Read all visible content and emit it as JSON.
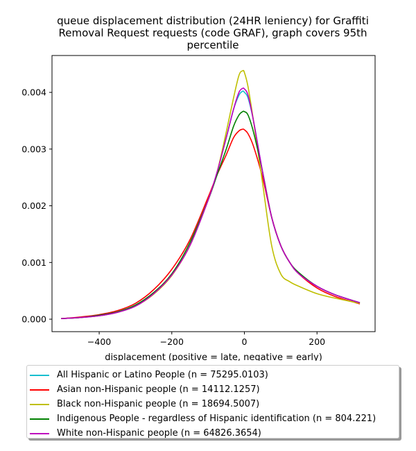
{
  "chart_data": {
    "type": "line",
    "title": "queue displacement distribution (24HR leniency) for Graffiti\nRemoval Request  requests (code GRAF), graph covers 95th\npercentile",
    "xlabel": "displacement (positive = late, negative = early)",
    "ylabel": "",
    "xlim": [
      -530,
      360
    ],
    "ylim": [
      -0.00022,
      0.00465
    ],
    "x_ticks": [
      -400,
      -200,
      0,
      200
    ],
    "x_tick_labels": [
      "−400",
      "−200",
      "0",
      "200"
    ],
    "y_ticks": [
      0.0,
      0.001,
      0.002,
      0.003,
      0.004
    ],
    "y_tick_labels": [
      "0.000",
      "0.001",
      "0.002",
      "0.003",
      "0.004"
    ],
    "grid": false,
    "legend_position": "bottom, below axes",
    "x": [
      -505,
      -450,
      -400,
      -350,
      -300,
      -250,
      -200,
      -150,
      -100,
      -75,
      -50,
      -30,
      -15,
      -5,
      0,
      10,
      25,
      50,
      75,
      100,
      125,
      150,
      200,
      250,
      318
    ],
    "series": [
      {
        "name": "All Hispanic or Latino People (n = 75295.0103)",
        "color": "#17becf",
        "values": [
          1e-05,
          3e-05,
          6e-05,
          0.00012,
          0.00023,
          0.00045,
          0.00078,
          0.0013,
          0.0021,
          0.0026,
          0.0032,
          0.0037,
          0.00395,
          0.00402,
          0.004,
          0.0039,
          0.0035,
          0.0026,
          0.0018,
          0.0013,
          0.001,
          0.0008,
          0.00058,
          0.00043,
          0.00029
        ]
      },
      {
        "name": "Asian non-Hispanic people (n = 14112.1257)",
        "color": "#ff0000",
        "values": [
          1e-05,
          4e-05,
          8e-05,
          0.00015,
          0.00028,
          0.00052,
          0.00088,
          0.0014,
          0.00215,
          0.00255,
          0.0029,
          0.0032,
          0.00332,
          0.00335,
          0.00334,
          0.00327,
          0.00305,
          0.0025,
          0.0018,
          0.0013,
          0.001,
          0.0008,
          0.00055,
          0.0004,
          0.00027
        ]
      },
      {
        "name": "Black non-Hispanic people (n = 18694.5007)",
        "color": "#bfbf00",
        "values": [
          1e-05,
          3e-05,
          6e-05,
          0.00012,
          0.00023,
          0.00044,
          0.00077,
          0.0013,
          0.0021,
          0.0026,
          0.0033,
          0.0039,
          0.0043,
          0.00438,
          0.00435,
          0.0041,
          0.0035,
          0.0024,
          0.0013,
          0.0008,
          0.00066,
          0.00058,
          0.00045,
          0.00037,
          0.00028
        ]
      },
      {
        "name": "Indigenous People - regardless of Hispanic identification (n = 804.221)",
        "color": "#008000",
        "values": [
          1e-05,
          3e-05,
          7e-05,
          0.00013,
          0.00025,
          0.00047,
          0.0008,
          0.00135,
          0.0021,
          0.00255,
          0.003,
          0.0034,
          0.0036,
          0.00366,
          0.00366,
          0.0036,
          0.0033,
          0.0026,
          0.0018,
          0.0013,
          0.001,
          0.00082,
          0.00058,
          0.00043,
          0.00029
        ]
      },
      {
        "name": "White non-Hispanic people (n = 64826.3654)",
        "color": "#bf00bf",
        "values": [
          1e-05,
          3e-05,
          6e-05,
          0.00012,
          0.00023,
          0.00045,
          0.00078,
          0.0013,
          0.0021,
          0.0026,
          0.0032,
          0.0037,
          0.004,
          0.00407,
          0.00406,
          0.00395,
          0.0035,
          0.0026,
          0.0018,
          0.0013,
          0.001,
          0.0008,
          0.00058,
          0.00043,
          0.00029
        ]
      }
    ]
  }
}
